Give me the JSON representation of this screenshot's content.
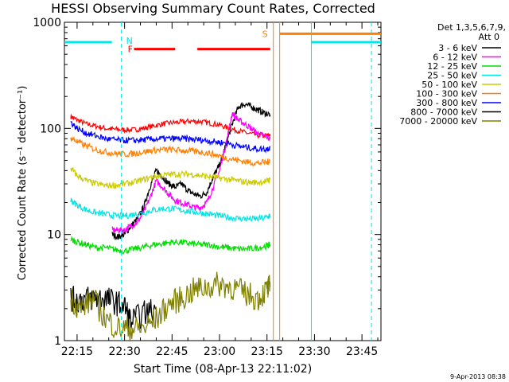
{
  "chart_data": {
    "type": "line",
    "title": "HESSI Observing Summary Count Rates, Corrected",
    "xlabel": "Start Time (08-Apr-13 22:11:02)",
    "ylabel": "Corrected Count Rate (s⁻¹ detector⁻¹)",
    "yscale": "log",
    "ylim": [
      1,
      1000
    ],
    "xlim_minutes_after_22_00": [
      11,
      52
    ],
    "xtick_labels": [
      "22:15",
      "22:30",
      "22:45",
      "23:00",
      "23:15",
      "23:30",
      "23:45"
    ],
    "xtick_minutes_after_22_00": [
      15,
      30,
      45,
      60,
      75,
      90,
      105
    ],
    "ytick_labels": [
      "1",
      "10",
      "100",
      "1000"
    ],
    "ytick_values": [
      1,
      10,
      100,
      1000
    ],
    "legend_header": [
      "Det 1,3,5,6,7,9,",
      "Att 0"
    ],
    "legend_placement": "right",
    "series": [
      {
        "name": "3 - 6 keV",
        "color": "#000000",
        "x": [
          26,
          28,
          30,
          32,
          34,
          36,
          38,
          40,
          42,
          44,
          46,
          48,
          50,
          52,
          54,
          56,
          58,
          60,
          62,
          64,
          66,
          68,
          70,
          72,
          74,
          76
        ],
        "y": [
          10,
          9.5,
          10,
          12,
          14,
          18,
          28,
          40,
          35,
          30,
          28,
          30,
          26,
          24,
          23,
          25,
          35,
          45,
          70,
          110,
          160,
          170,
          160,
          150,
          140,
          135
        ]
      },
      {
        "name": "6 - 12 keV",
        "color": "#ff00ff",
        "x": [
          26,
          28,
          30,
          32,
          34,
          36,
          38,
          40,
          42,
          44,
          46,
          48,
          50,
          52,
          54,
          56,
          58,
          60,
          62,
          64,
          66,
          68,
          70,
          72,
          74,
          76
        ],
        "y": [
          11,
          11,
          11,
          12,
          13,
          16,
          22,
          32,
          28,
          24,
          21,
          20,
          19,
          18,
          18,
          20,
          28,
          40,
          70,
          140,
          120,
          110,
          100,
          90,
          85,
          80
        ]
      },
      {
        "name": "12 - 25 keV",
        "color": "#00dd00",
        "x": [
          13,
          15,
          18,
          21,
          24,
          27,
          30,
          33,
          36,
          39,
          42,
          45,
          48,
          51,
          54,
          57,
          60,
          63,
          66,
          69,
          72,
          75,
          76
        ],
        "y": [
          9,
          8.5,
          8,
          7.5,
          7.5,
          7.2,
          7,
          7.3,
          7.6,
          8,
          8.2,
          8.5,
          8.4,
          8.2,
          8,
          8,
          7.6,
          7.5,
          7.3,
          7.3,
          7.5,
          7.8,
          8
        ]
      },
      {
        "name": "25 - 50 keV",
        "color": "#00e5e5",
        "x": [
          13,
          15,
          18,
          21,
          24,
          27,
          30,
          33,
          36,
          39,
          42,
          45,
          48,
          51,
          54,
          57,
          60,
          63,
          66,
          69,
          72,
          75,
          76
        ],
        "y": [
          21,
          19,
          17,
          16,
          15.5,
          15,
          15,
          15.5,
          16,
          17,
          17.5,
          17.5,
          17,
          16.5,
          16,
          15.5,
          15,
          14.5,
          14.2,
          14,
          14,
          14.5,
          15
        ]
      },
      {
        "name": "50 - 100 keV",
        "color": "#cccc00",
        "x": [
          13,
          15,
          18,
          21,
          24,
          27,
          30,
          33,
          36,
          39,
          42,
          45,
          48,
          51,
          54,
          57,
          60,
          63,
          66,
          69,
          72,
          75,
          76
        ],
        "y": [
          42,
          36,
          32,
          30,
          29,
          29,
          30,
          31,
          33,
          35,
          36,
          37,
          37,
          37,
          36,
          35,
          34,
          33,
          32,
          31,
          31,
          32,
          33
        ]
      },
      {
        "name": "100 - 300 keV",
        "color": "#ff8000",
        "x": [
          13,
          15,
          18,
          21,
          24,
          27,
          30,
          33,
          36,
          39,
          42,
          45,
          48,
          51,
          54,
          57,
          60,
          63,
          66,
          69,
          72,
          75,
          76
        ],
        "y": [
          82,
          75,
          68,
          63,
          60,
          58,
          57,
          58,
          60,
          62,
          63,
          63,
          62,
          61,
          60,
          58,
          55,
          52,
          50,
          48,
          47,
          48,
          50
        ]
      },
      {
        "name": "300 - 800 keV",
        "color": "#0000ff",
        "x": [
          13,
          15,
          18,
          21,
          24,
          27,
          30,
          33,
          36,
          39,
          42,
          45,
          48,
          51,
          54,
          57,
          60,
          63,
          66,
          69,
          72,
          75,
          76
        ],
        "y": [
          115,
          100,
          90,
          85,
          80,
          78,
          77,
          77,
          78,
          79,
          80,
          80,
          80,
          79,
          78,
          76,
          74,
          72,
          68,
          66,
          64,
          64,
          66
        ]
      },
      {
        "name": "800 - 7000 keV",
        "color": "#000000",
        "x": [
          13,
          15,
          18,
          21,
          24,
          27,
          30,
          32,
          36,
          40
        ],
        "y": [
          2.5,
          2.4,
          2.5,
          2.5,
          2.5,
          2.3,
          2.1,
          1.5,
          1.8,
          2.0
        ]
      },
      {
        "name": "7000 - 20000 keV",
        "color": "#808000",
        "x": [
          13,
          16,
          20,
          24,
          28,
          32,
          36,
          40,
          44,
          48,
          52,
          56,
          60,
          64,
          68,
          72,
          75,
          76
        ],
        "y": [
          2.5,
          2.0,
          2.5,
          1.6,
          1.3,
          1.3,
          1.3,
          1.6,
          2.2,
          2.5,
          3.0,
          3.2,
          3.4,
          3.2,
          2.8,
          2.5,
          3.0,
          3.2
        ]
      }
    ],
    "red_series_x": [
      13,
      15,
      18,
      21,
      24,
      27,
      30,
      33,
      36,
      39,
      42,
      45,
      48,
      51,
      54,
      57,
      60,
      63,
      66,
      69,
      72,
      75,
      76
    ],
    "red_series_y": [
      130,
      120,
      110,
      105,
      100,
      98,
      97,
      97,
      100,
      105,
      110,
      113,
      115,
      117,
      116,
      112,
      108,
      100,
      95,
      90,
      86,
      85,
      88
    ],
    "red_series_color": "#ff0000",
    "annotations": {
      "night_label": "N",
      "flare_label": "F",
      "saa_label": "S",
      "night_color": "#00e5e5",
      "flare_color": "#ff0000",
      "saa_color": "#ff8000",
      "night_level": 650,
      "flare_level": 560,
      "saa_level": 780
    },
    "footer_date": "9-Apr-2013 08:38"
  }
}
